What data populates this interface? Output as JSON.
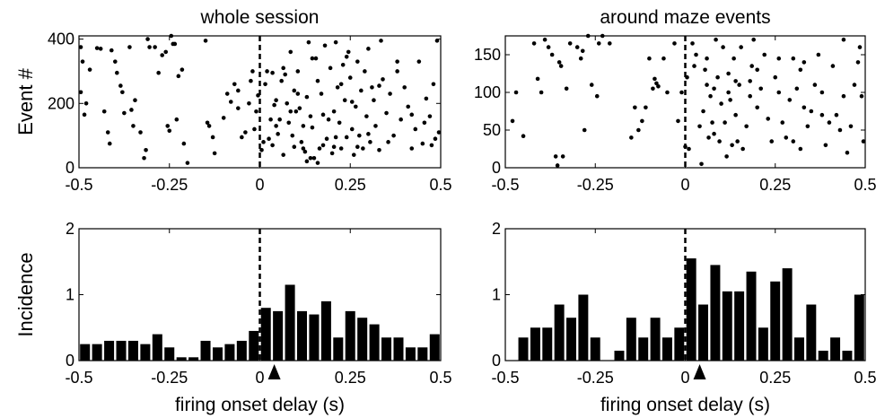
{
  "chart_data": [
    {
      "type": "scatter",
      "panel": "raster-left",
      "title": "whole session",
      "ylabel": "Event #",
      "xlabel": "",
      "xlim": [
        -0.5,
        0.5
      ],
      "ylim": [
        0,
        410
      ],
      "xticks": [
        -0.5,
        -0.25,
        0,
        0.25,
        0.5
      ],
      "xtick_labels": [
        "-0.5",
        "-0.25",
        "0",
        "0.25",
        "0.5"
      ],
      "yticks": [
        0,
        200,
        400
      ],
      "ytick_labels": [
        "0",
        "200",
        "400"
      ],
      "vline_x": 0,
      "points": [
        [
          -0.495,
          375
        ],
        [
          -0.49,
          330
        ],
        [
          -0.495,
          235
        ],
        [
          -0.48,
          200
        ],
        [
          -0.485,
          165
        ],
        [
          -0.47,
          305
        ],
        [
          -0.45,
          372
        ],
        [
          -0.44,
          370
        ],
        [
          -0.43,
          175
        ],
        [
          -0.42,
          110
        ],
        [
          -0.415,
          75
        ],
        [
          -0.41,
          365
        ],
        [
          -0.4,
          330
        ],
        [
          -0.395,
          295
        ],
        [
          -0.385,
          255
        ],
        [
          -0.38,
          235
        ],
        [
          -0.375,
          170
        ],
        [
          -0.36,
          375
        ],
        [
          -0.355,
          180
        ],
        [
          -0.35,
          130
        ],
        [
          -0.345,
          210
        ],
        [
          -0.33,
          110
        ],
        [
          -0.32,
          30
        ],
        [
          -0.315,
          55
        ],
        [
          -0.31,
          400
        ],
        [
          -0.305,
          375
        ],
        [
          -0.29,
          375
        ],
        [
          -0.28,
          295
        ],
        [
          -0.27,
          350
        ],
        [
          -0.26,
          360
        ],
        [
          -0.255,
          130
        ],
        [
          -0.25,
          115
        ],
        [
          -0.245,
          410
        ],
        [
          -0.24,
          385
        ],
        [
          -0.235,
          385
        ],
        [
          -0.23,
          150
        ],
        [
          -0.225,
          285
        ],
        [
          -0.215,
          305
        ],
        [
          -0.21,
          75
        ],
        [
          -0.2,
          15
        ],
        [
          -0.15,
          395
        ],
        [
          -0.145,
          140
        ],
        [
          -0.14,
          130
        ],
        [
          -0.13,
          95
        ],
        [
          -0.125,
          45
        ],
        [
          -0.1,
          155
        ],
        [
          -0.09,
          230
        ],
        [
          -0.08,
          205
        ],
        [
          -0.07,
          260
        ],
        [
          -0.06,
          240
        ],
        [
          -0.05,
          95
        ],
        [
          -0.03,
          200
        ],
        [
          -0.02,
          300
        ],
        [
          -0.015,
          120
        ],
        [
          -0.01,
          175
        ],
        [
          -0.005,
          225
        ],
        [
          0.005,
          55
        ],
        [
          0.01,
          80
        ],
        [
          0.015,
          260
        ],
        [
          0.02,
          300
        ],
        [
          0.025,
          90
        ],
        [
          0.03,
          150
        ],
        [
          0.035,
          70
        ],
        [
          0.04,
          195
        ],
        [
          0.045,
          210
        ],
        [
          0.05,
          105
        ],
        [
          0.055,
          150
        ],
        [
          0.06,
          270
        ],
        [
          0.065,
          40
        ],
        [
          0.07,
          290
        ],
        [
          0.075,
          200
        ],
        [
          0.08,
          140
        ],
        [
          0.085,
          360
        ],
        [
          0.09,
          100
        ],
        [
          0.095,
          240
        ],
        [
          0.1,
          175
        ],
        [
          0.105,
          300
        ],
        [
          0.11,
          185
        ],
        [
          0.115,
          80
        ],
        [
          0.12,
          130
        ],
        [
          0.125,
          50
        ],
        [
          0.13,
          220
        ],
        [
          0.135,
          390
        ],
        [
          0.14,
          160
        ],
        [
          0.145,
          125
        ],
        [
          0.15,
          30
        ],
        [
          0.155,
          340
        ],
        [
          0.16,
          270
        ],
        [
          0.165,
          60
        ],
        [
          0.17,
          230
        ],
        [
          0.175,
          70
        ],
        [
          0.18,
          380
        ],
        [
          0.185,
          90
        ],
        [
          0.19,
          150
        ],
        [
          0.195,
          310
        ],
        [
          0.2,
          45
        ],
        [
          0.205,
          175
        ],
        [
          0.21,
          390
        ],
        [
          0.215,
          250
        ],
        [
          0.22,
          140
        ],
        [
          0.225,
          60
        ],
        [
          0.23,
          320
        ],
        [
          0.235,
          210
        ],
        [
          0.24,
          95
        ],
        [
          0.245,
          360
        ],
        [
          0.25,
          280
        ],
        [
          0.255,
          120
        ],
        [
          0.26,
          40
        ],
        [
          0.265,
          190
        ],
        [
          0.27,
          330
        ],
        [
          0.275,
          100
        ],
        [
          0.28,
          240
        ],
        [
          0.285,
          60
        ],
        [
          0.29,
          300
        ],
        [
          0.295,
          160
        ],
        [
          0.3,
          370
        ],
        [
          0.305,
          80
        ],
        [
          0.31,
          250
        ],
        [
          0.315,
          210
        ],
        [
          0.32,
          130
        ],
        [
          0.33,
          55
        ],
        [
          0.335,
          395
        ],
        [
          0.34,
          275
        ],
        [
          0.35,
          170
        ],
        [
          0.36,
          230
        ],
        [
          0.37,
          100
        ],
        [
          0.38,
          300
        ],
        [
          0.39,
          150
        ],
        [
          0.4,
          250
        ],
        [
          0.41,
          190
        ],
        [
          0.42,
          60
        ],
        [
          0.43,
          120
        ],
        [
          0.44,
          330
        ],
        [
          0.45,
          75
        ],
        [
          0.46,
          215
        ],
        [
          0.47,
          160
        ],
        [
          0.475,
          70
        ],
        [
          0.48,
          260
        ],
        [
          0.49,
          395
        ],
        [
          0.495,
          110
        ],
        [
          0.13,
          20
        ],
        [
          0.12,
          60
        ],
        [
          0.14,
          30
        ],
        [
          0.16,
          15
        ],
        [
          0.035,
          295
        ],
        [
          0.045,
          130
        ],
        [
          0.065,
          310
        ],
        [
          0.085,
          175
        ],
        [
          0.095,
          65
        ],
        [
          0.105,
          230
        ],
        [
          0.145,
          340
        ],
        [
          0.175,
          165
        ],
        [
          0.205,
          65
        ],
        [
          0.225,
          260
        ],
        [
          0.255,
          205
        ],
        [
          0.355,
          80
        ],
        [
          0.38,
          330
        ],
        [
          0.42,
          165
        ],
        [
          0.455,
          140
        ],
        [
          0.485,
          90
        ],
        [
          -0.06,
          185
        ],
        [
          -0.04,
          110
        ],
        [
          -0.025,
          270
        ],
        [
          0.21,
          95
        ],
        [
          0.3,
          105
        ],
        [
          0.33,
          255
        ],
        [
          0.27,
          65
        ],
        [
          0.24,
          345
        ]
      ]
    },
    {
      "type": "scatter",
      "panel": "raster-right",
      "title": "around maze events",
      "ylabel": "",
      "xlabel": "",
      "xlim": [
        -0.5,
        0.5
      ],
      "ylim": [
        0,
        175
      ],
      "xticks": [
        -0.5,
        -0.25,
        0,
        0.25,
        0.5
      ],
      "xtick_labels": [
        "-0.5",
        "-0.25",
        "0",
        "0.25",
        "0.5"
      ],
      "yticks": [
        0,
        50,
        100,
        150
      ],
      "ytick_labels": [
        "0",
        "50",
        "100",
        "150"
      ],
      "vline_x": 0,
      "points": [
        [
          -0.48,
          62
        ],
        [
          -0.47,
          100
        ],
        [
          -0.45,
          42
        ],
        [
          -0.42,
          165
        ],
        [
          -0.41,
          118
        ],
        [
          -0.4,
          100
        ],
        [
          -0.39,
          170
        ],
        [
          -0.38,
          160
        ],
        [
          -0.37,
          150
        ],
        [
          -0.36,
          15
        ],
        [
          -0.355,
          3
        ],
        [
          -0.35,
          140
        ],
        [
          -0.345,
          135
        ],
        [
          -0.34,
          15
        ],
        [
          -0.33,
          105
        ],
        [
          -0.32,
          165
        ],
        [
          -0.3,
          160
        ],
        [
          -0.29,
          145
        ],
        [
          -0.285,
          155
        ],
        [
          -0.28,
          50
        ],
        [
          -0.27,
          175
        ],
        [
          -0.26,
          110
        ],
        [
          -0.245,
          95
        ],
        [
          -0.24,
          165
        ],
        [
          -0.23,
          175
        ],
        [
          -0.21,
          165
        ],
        [
          -0.15,
          40
        ],
        [
          -0.14,
          80
        ],
        [
          -0.13,
          50
        ],
        [
          -0.12,
          62
        ],
        [
          -0.11,
          80
        ],
        [
          -0.1,
          145
        ],
        [
          -0.09,
          105
        ],
        [
          -0.085,
          118
        ],
        [
          -0.08,
          112
        ],
        [
          -0.075,
          108
        ],
        [
          -0.06,
          145
        ],
        [
          -0.05,
          100
        ],
        [
          -0.03,
          165
        ],
        [
          -0.02,
          62
        ],
        [
          -0.01,
          100
        ],
        [
          0.0,
          28
        ],
        [
          0.005,
          120
        ],
        [
          0.01,
          25
        ],
        [
          0.02,
          165
        ],
        [
          0.025,
          135
        ],
        [
          0.03,
          150
        ],
        [
          0.04,
          55
        ],
        [
          0.045,
          5
        ],
        [
          0.05,
          75
        ],
        [
          0.055,
          130
        ],
        [
          0.06,
          110
        ],
        [
          0.065,
          40
        ],
        [
          0.07,
          95
        ],
        [
          0.075,
          60
        ],
        [
          0.08,
          105
        ],
        [
          0.085,
          170
        ],
        [
          0.09,
          120
        ],
        [
          0.095,
          35
        ],
        [
          0.1,
          85
        ],
        [
          0.105,
          160
        ],
        [
          0.11,
          60
        ],
        [
          0.115,
          15
        ],
        [
          0.12,
          100
        ],
        [
          0.125,
          90
        ],
        [
          0.13,
          30
        ],
        [
          0.135,
          145
        ],
        [
          0.14,
          70
        ],
        [
          0.145,
          35
        ],
        [
          0.15,
          110
        ],
        [
          0.155,
          160
        ],
        [
          0.16,
          25
        ],
        [
          0.17,
          55
        ],
        [
          0.18,
          95
        ],
        [
          0.185,
          135
        ],
        [
          0.19,
          170
        ],
        [
          0.2,
          80
        ],
        [
          0.21,
          105
        ],
        [
          0.22,
          150
        ],
        [
          0.23,
          65
        ],
        [
          0.24,
          35
        ],
        [
          0.25,
          120
        ],
        [
          0.26,
          145
        ],
        [
          0.27,
          60
        ],
        [
          0.28,
          40
        ],
        [
          0.29,
          90
        ],
        [
          0.3,
          145
        ],
        [
          0.31,
          105
        ],
        [
          0.32,
          25
        ],
        [
          0.33,
          140
        ],
        [
          0.34,
          55
        ],
        [
          0.35,
          75
        ],
        [
          0.36,
          110
        ],
        [
          0.37,
          150
        ],
        [
          0.38,
          100
        ],
        [
          0.39,
          30
        ],
        [
          0.41,
          135
        ],
        [
          0.42,
          70
        ],
        [
          0.43,
          50
        ],
        [
          0.44,
          170
        ],
        [
          0.45,
          20
        ],
        [
          0.46,
          55
        ],
        [
          0.47,
          110
        ],
        [
          0.48,
          140
        ],
        [
          0.49,
          95
        ],
        [
          0.495,
          35
        ],
        [
          0.485,
          160
        ],
        [
          0.2,
          130
        ],
        [
          0.14,
          115
        ],
        [
          0.06,
          145
        ],
        [
          0.3,
          35
        ],
        [
          0.32,
          130
        ],
        [
          0.38,
          70
        ],
        [
          0.44,
          95
        ],
        [
          0.08,
          45
        ],
        [
          0.12,
          125
        ],
        [
          0.18,
          115
        ],
        [
          0.26,
          100
        ],
        [
          0.33,
          80
        ],
        [
          0.4,
          60
        ]
      ]
    },
    {
      "type": "bar",
      "panel": "hist-left",
      "title": "",
      "ylabel": "Incidence",
      "xlabel": "firing onset delay (s)",
      "xlim": [
        -0.5,
        0.5
      ],
      "ylim": [
        0,
        2
      ],
      "bin_width": 0.0333,
      "bin_starts": [
        -0.5,
        -0.4667,
        -0.4333,
        -0.4,
        -0.3667,
        -0.3333,
        -0.3,
        -0.2667,
        -0.2333,
        -0.2,
        -0.1667,
        -0.1333,
        -0.1,
        -0.0667,
        -0.0333,
        0,
        0.0333,
        0.0667,
        0.1,
        0.1333,
        0.1667,
        0.2,
        0.2333,
        0.2667,
        0.3,
        0.3333,
        0.3667,
        0.4,
        0.4333,
        0.4667
      ],
      "values": [
        0.25,
        0.25,
        0.3,
        0.3,
        0.3,
        0.25,
        0.4,
        0.2,
        0.05,
        0.05,
        0.3,
        0.2,
        0.25,
        0.3,
        0.45,
        0.8,
        0.75,
        1.15,
        0.75,
        0.7,
        0.9,
        0.35,
        0.75,
        0.65,
        0.55,
        0.35,
        0.35,
        0.2,
        0.2,
        0.4
      ],
      "xticks": [
        -0.5,
        -0.25,
        0,
        0.25,
        0.5
      ],
      "xtick_labels": [
        "-0.5",
        "-0.25",
        "0",
        "0.25",
        "0.5"
      ],
      "yticks": [
        0,
        1,
        2
      ],
      "ytick_labels": [
        "0",
        "1",
        "2"
      ],
      "vline_x": 0,
      "arrow_x": 0.04
    },
    {
      "type": "bar",
      "panel": "hist-right",
      "title": "",
      "ylabel": "",
      "xlabel": "firing onset delay (s)",
      "xlim": [
        -0.5,
        0.5
      ],
      "ylim": [
        0,
        2
      ],
      "bin_width": 0.0333,
      "bin_starts": [
        -0.4667,
        -0.4333,
        -0.4,
        -0.3667,
        -0.3333,
        -0.3,
        -0.2667,
        -0.2333,
        -0.2,
        -0.1667,
        -0.1333,
        -0.1,
        -0.0667,
        -0.0333,
        0,
        0.0333,
        0.0667,
        0.1,
        0.1333,
        0.1667,
        0.2,
        0.2333,
        0.2667,
        0.3,
        0.3333,
        0.3667,
        0.4,
        0.4333,
        0.4667
      ],
      "values": [
        0.35,
        0.5,
        0.5,
        0.85,
        0.65,
        1.0,
        0.35,
        0.0,
        0.15,
        0.65,
        0.35,
        0.65,
        0.35,
        0.5,
        1.55,
        0.85,
        1.45,
        1.05,
        1.05,
        1.35,
        0.5,
        1.2,
        1.4,
        0.35,
        0.85,
        0.15,
        0.35,
        0.15,
        1.0
      ],
      "xticks": [
        -0.5,
        -0.25,
        0,
        0.25,
        0.5
      ],
      "xtick_labels": [
        "-0.5",
        "-0.25",
        "0",
        "0.25",
        "0.5"
      ],
      "yticks": [
        0,
        1,
        2
      ],
      "ytick_labels": [
        "0",
        "1",
        "2"
      ],
      "vline_x": 0,
      "arrow_x": 0.04
    }
  ]
}
